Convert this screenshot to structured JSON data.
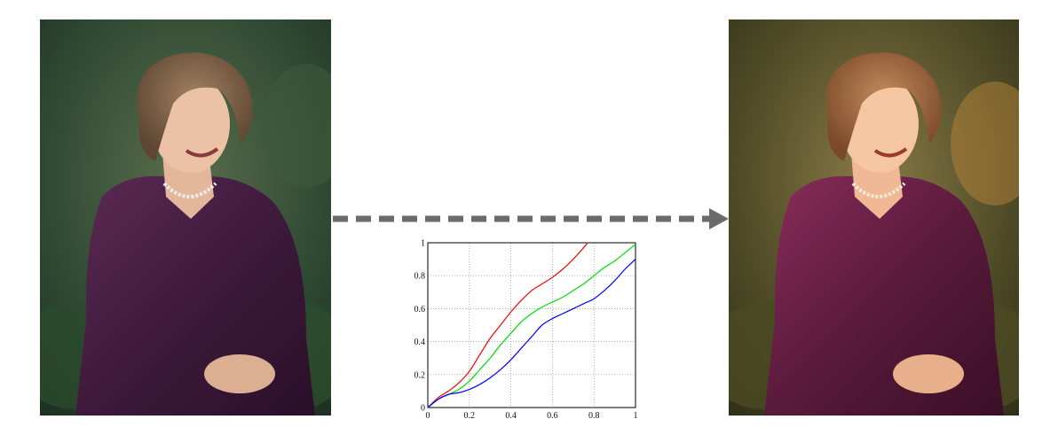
{
  "photos": {
    "input": {
      "icon": "portrait-original-photo",
      "tone": "cool"
    },
    "output": {
      "icon": "portrait-warm-toned-photo",
      "tone": "warm"
    }
  },
  "arrow": {
    "icon": "dashed-right-arrow-icon",
    "color": "#6b6b6b"
  },
  "chart_data": {
    "type": "line",
    "title": "",
    "xlabel": "",
    "ylabel": "",
    "xlim": [
      0,
      1
    ],
    "ylim": [
      0,
      1
    ],
    "grid": true,
    "x_ticks": [
      "0",
      "0.2",
      "0.4",
      "0.6",
      "0.8",
      "1"
    ],
    "y_ticks": [
      "0",
      "0.2",
      "0.4",
      "0.6",
      "0.8",
      "1"
    ],
    "series": [
      {
        "color": "#ff0000",
        "x": [
          0,
          0.05,
          0.1,
          0.15,
          0.2,
          0.25,
          0.3,
          0.35,
          0.4,
          0.45,
          0.5,
          0.55,
          0.6,
          0.65,
          0.7,
          0.75,
          0.77
        ],
        "y": [
          0,
          0.06,
          0.1,
          0.15,
          0.22,
          0.32,
          0.42,
          0.5,
          0.58,
          0.65,
          0.71,
          0.75,
          0.79,
          0.84,
          0.9,
          0.97,
          1.0
        ]
      },
      {
        "color": "#00e000",
        "x": [
          0,
          0.05,
          0.1,
          0.15,
          0.2,
          0.25,
          0.3,
          0.35,
          0.4,
          0.45,
          0.5,
          0.55,
          0.6,
          0.65,
          0.7,
          0.75,
          0.8,
          0.85,
          0.9,
          0.95,
          1.0
        ],
        "y": [
          0,
          0.05,
          0.08,
          0.11,
          0.16,
          0.23,
          0.3,
          0.38,
          0.45,
          0.52,
          0.57,
          0.61,
          0.64,
          0.67,
          0.71,
          0.75,
          0.8,
          0.85,
          0.89,
          0.94,
          0.99
        ]
      },
      {
        "color": "#0000ff",
        "x": [
          0,
          0.05,
          0.1,
          0.15,
          0.2,
          0.25,
          0.3,
          0.35,
          0.4,
          0.45,
          0.5,
          0.55,
          0.6,
          0.65,
          0.7,
          0.75,
          0.8,
          0.85,
          0.9,
          0.95,
          1.0
        ],
        "y": [
          0,
          0.05,
          0.08,
          0.09,
          0.11,
          0.14,
          0.18,
          0.23,
          0.29,
          0.36,
          0.43,
          0.5,
          0.54,
          0.57,
          0.6,
          0.63,
          0.66,
          0.71,
          0.77,
          0.84,
          0.9
        ]
      }
    ]
  }
}
